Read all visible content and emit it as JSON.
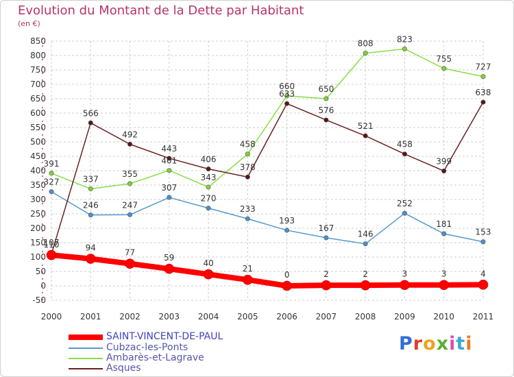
{
  "header": {
    "title": "Evolution du Montant de la Dette par Habitant",
    "unit": "(en €)"
  },
  "colors": {
    "title": "#b8336a",
    "grid": "#cccccc",
    "saint_vincent": "#ff0000",
    "cubzac": "#5599cc",
    "ambares": "#88dd44",
    "asques": "#6b1f1f"
  },
  "logo": {
    "text": "Proxiti",
    "letter_colors": [
      "#2f6fd6",
      "#e53b2a",
      "#f0a020",
      "#58b030",
      "#d94fb0",
      "#3aa9d9",
      "#f07a20"
    ]
  },
  "chart_data": {
    "type": "line",
    "title": "Evolution du Montant de la Dette par Habitant",
    "ylabel": "(en €)",
    "xlabel": "",
    "x": [
      "2000",
      "2001",
      "2002",
      "2003",
      "2004",
      "2005",
      "2006",
      "2007",
      "2008",
      "2009",
      "2010",
      "2011"
    ],
    "ylim": [
      -50,
      850
    ],
    "yticks": [
      "-50",
      "0",
      "50",
      "100",
      "150",
      "200",
      "250",
      "300",
      "350",
      "400",
      "450",
      "500",
      "550",
      "600",
      "650",
      "700",
      "750",
      "800",
      "850"
    ],
    "grid": true,
    "legend": "bottom-left",
    "series": [
      {
        "name": "SAINT-VINCENT-DE-PAUL",
        "color": "#ff0000",
        "values": [
          107,
          94,
          77,
          59,
          40,
          21,
          0,
          2,
          2,
          3,
          3,
          4
        ],
        "labels": [
          "107",
          "94",
          "77",
          "59",
          "40",
          "21",
          "0",
          "2",
          "2",
          "3",
          "3",
          "4"
        ]
      },
      {
        "name": "Cubzac-les-Ponts",
        "color": "#5599cc",
        "values": [
          327,
          246,
          247,
          307,
          270,
          233,
          193,
          167,
          146,
          252,
          181,
          153
        ],
        "labels": [
          "327",
          "246",
          "247",
          "307",
          "270",
          "233",
          "193",
          "167",
          "146",
          "252",
          "181",
          "153"
        ]
      },
      {
        "name": "Ambarès-et-Lagrave",
        "color": "#88dd44",
        "values": [
          391,
          337,
          355,
          401,
          343,
          458,
          660,
          650,
          808,
          823,
          755,
          727
        ],
        "labels": [
          "391",
          "337",
          "355",
          "401",
          "343",
          "458",
          "660",
          "650",
          "808",
          "823",
          "755",
          "727"
        ]
      },
      {
        "name": "Asques",
        "color": "#6b1f1f",
        "values": [
          110,
          566,
          492,
          443,
          406,
          378,
          633,
          576,
          521,
          458,
          399,
          638
        ],
        "labels": [
          "110",
          "566",
          "492",
          "443",
          "406",
          "378",
          "633",
          "576",
          "521",
          "458",
          "399",
          "638"
        ]
      }
    ]
  }
}
